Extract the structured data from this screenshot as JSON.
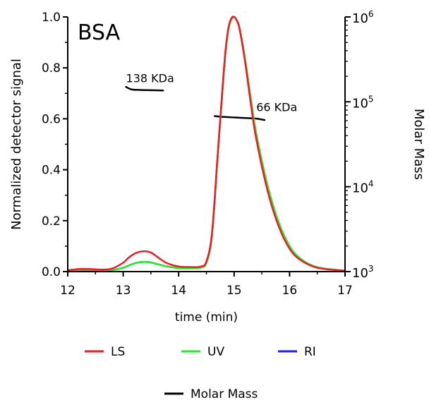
{
  "chart_data": {
    "type": "line",
    "title": "BSA",
    "xlabel": "time (min)",
    "ylabel": "Normalized detector signal",
    "y2label": "Molar Mass",
    "xlim": [
      12,
      17
    ],
    "ylim": [
      0,
      1.0
    ],
    "y2lim": [
      1000,
      1000000
    ],
    "y2scale": "log",
    "grid": false,
    "legend_position": "bottom",
    "x_ticks": [
      12,
      13,
      14,
      15,
      16,
      17
    ],
    "x_tick_labels": [
      "12",
      "13",
      "14",
      "15",
      "16",
      "17"
    ],
    "y_ticks": [
      0,
      0.2,
      0.4,
      0.6,
      0.8,
      1.0
    ],
    "y_tick_labels": [
      "0.0",
      "0.2",
      "0.4",
      "0.6",
      "0.8",
      "1.0"
    ],
    "y2_ticks": [
      {
        "base": "10",
        "exp": "3"
      },
      {
        "base": "10",
        "exp": "4"
      },
      {
        "base": "10",
        "exp": "5"
      },
      {
        "base": "10",
        "exp": "6"
      }
    ],
    "series": [
      {
        "name": "LS",
        "color": "#ee1c24",
        "axis": "left",
        "x": [
          12.0,
          12.2,
          12.4,
          12.6,
          12.8,
          13.0,
          13.1,
          13.2,
          13.3,
          13.4,
          13.5,
          13.6,
          13.7,
          13.8,
          14.0,
          14.2,
          14.4,
          14.5,
          14.6,
          14.7,
          14.8,
          14.85,
          14.9,
          14.95,
          15.0,
          15.05,
          15.1,
          15.2,
          15.3,
          15.4,
          15.6,
          15.8,
          16.0,
          16.2,
          16.5,
          17.0
        ],
        "y": [
          0.005,
          0.01,
          0.01,
          0.008,
          0.012,
          0.035,
          0.055,
          0.07,
          0.078,
          0.08,
          0.075,
          0.06,
          0.045,
          0.032,
          0.02,
          0.018,
          0.02,
          0.04,
          0.15,
          0.45,
          0.75,
          0.88,
          0.96,
          0.995,
          1.0,
          0.985,
          0.95,
          0.82,
          0.66,
          0.52,
          0.32,
          0.18,
          0.09,
          0.045,
          0.015,
          0.003
        ]
      },
      {
        "name": "UV",
        "color": "#22ee22",
        "axis": "left",
        "x": [
          12.0,
          12.2,
          12.4,
          12.6,
          12.8,
          13.0,
          13.1,
          13.2,
          13.3,
          13.4,
          13.5,
          13.6,
          13.8,
          14.0,
          14.2,
          14.4,
          14.5,
          14.6,
          14.7,
          14.8,
          14.85,
          14.9,
          14.95,
          15.0,
          15.05,
          15.1,
          15.2,
          15.3,
          15.4,
          15.6,
          15.8,
          16.0,
          16.2,
          16.5,
          17.0
        ],
        "y": [
          0.002,
          0.004,
          0.005,
          0.004,
          0.006,
          0.015,
          0.024,
          0.032,
          0.037,
          0.038,
          0.036,
          0.03,
          0.02,
          0.014,
          0.013,
          0.016,
          0.035,
          0.14,
          0.44,
          0.74,
          0.87,
          0.955,
          0.99,
          1.0,
          0.985,
          0.955,
          0.83,
          0.68,
          0.54,
          0.34,
          0.195,
          0.1,
          0.05,
          0.017,
          0.003
        ]
      },
      {
        "name": "RI",
        "color": "#1c1cee",
        "axis": "left",
        "x": [
          12.0,
          12.2,
          12.4,
          12.6,
          12.8,
          13.0,
          13.1,
          13.2,
          13.3,
          13.4,
          13.5,
          13.6,
          13.8,
          14.0,
          14.2,
          14.4,
          14.5,
          14.6,
          14.7,
          14.8,
          14.85,
          14.9,
          14.95,
          15.0,
          15.05,
          15.1,
          15.2,
          15.3,
          15.4,
          15.6,
          15.8,
          16.0,
          16.2,
          16.5,
          17.0
        ],
        "y": [
          0.002,
          0.004,
          0.005,
          0.004,
          0.006,
          0.015,
          0.024,
          0.032,
          0.037,
          0.038,
          0.036,
          0.03,
          0.02,
          0.014,
          0.013,
          0.016,
          0.035,
          0.14,
          0.44,
          0.74,
          0.87,
          0.955,
          0.99,
          1.0,
          0.985,
          0.955,
          0.83,
          0.68,
          0.54,
          0.34,
          0.195,
          0.1,
          0.05,
          0.017,
          0.003
        ]
      },
      {
        "name": "Molar Mass",
        "color": "#000000",
        "axis": "right",
        "segments": [
          {
            "x": [
              13.05,
              13.15,
              13.3,
              13.5,
              13.72
            ],
            "y": [
              150000,
              140000,
              138000,
              137000,
              136000
            ]
          },
          {
            "x": [
              14.65,
              14.8,
              15.0,
              15.2,
              15.4,
              15.55
            ],
            "y": [
              68000,
              66500,
              65500,
              64500,
              63500,
              61000
            ]
          }
        ]
      }
    ],
    "annotations": [
      {
        "text": "138 KDa",
        "x": 13.05,
        "y": 170000
      },
      {
        "text": "66 KDa",
        "x": 15.4,
        "y": 78000
      }
    ]
  }
}
